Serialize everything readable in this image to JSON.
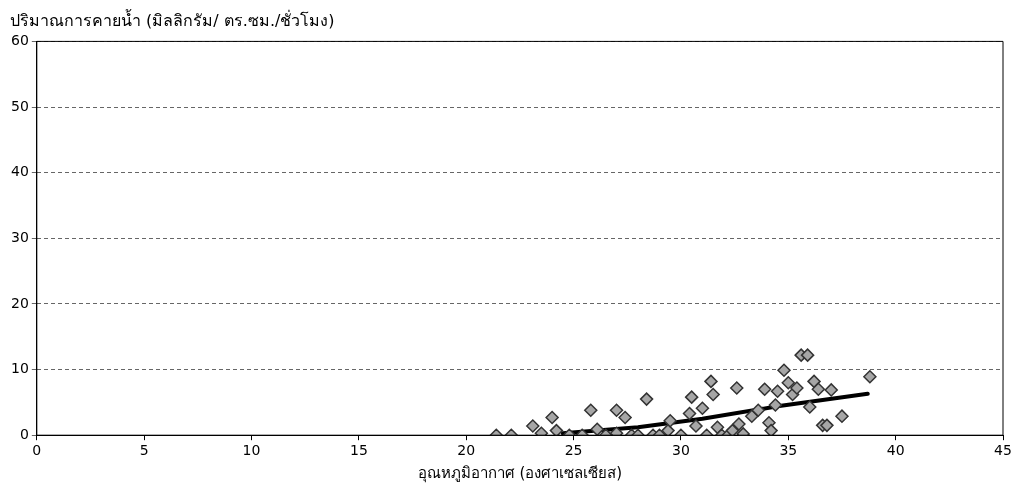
{
  "chart_data": {
    "type": "scatter",
    "ylabel": "ปริมาณการคายน้ำ (มิลลิกรัม/ ตร.ซม./ชั่วโมง)",
    "xlabel": "อุณหภูมิอากาศ (องศาเซลเซียส)",
    "xlim": [
      0,
      45
    ],
    "xticks": [
      0,
      5,
      10,
      15,
      20,
      25,
      30,
      35,
      40,
      45
    ],
    "ylim": [
      0,
      60
    ],
    "yticks": [
      0,
      10,
      20,
      30,
      40,
      50,
      60
    ],
    "grid": "y",
    "legend": false,
    "series": [
      {
        "marker": "diamond",
        "color": "#a6a6a6",
        "x": [
          21.4,
          22.1,
          23.1,
          23.5,
          24.0,
          24.2,
          24.8,
          25.4,
          25.8,
          26.1,
          26.5,
          27.0,
          27.0,
          27.4,
          27.7,
          28.0,
          28.4,
          28.7,
          29.0,
          29.4,
          29.5,
          30.0,
          30.4,
          30.5,
          30.7,
          31.0,
          31.2,
          31.4,
          31.5,
          31.7,
          31.9,
          32.2,
          32.4,
          32.6,
          32.7,
          32.9,
          33.3,
          33.6,
          33.9,
          34.1,
          34.2,
          34.4,
          34.5,
          34.8,
          35.0,
          35.2,
          35.4,
          35.6,
          35.9,
          36.0,
          36.2,
          36.4,
          36.6,
          36.8,
          37.0,
          37.5,
          38.8
        ],
        "values": [
          0,
          0,
          1.4,
          0.3,
          2.7,
          0.7,
          0,
          0,
          3.8,
          0.9,
          0,
          0.3,
          3.8,
          2.7,
          0,
          0,
          5.5,
          0,
          0,
          0.7,
          2.2,
          0,
          3.3,
          5.8,
          1.4,
          4.1,
          0,
          8.2,
          6.2,
          1.2,
          0,
          0,
          0.7,
          7.2,
          1.7,
          0.2,
          2.9,
          3.8,
          7,
          1.9,
          0.7,
          4.6,
          6.7,
          9.9,
          8,
          6.2,
          7.2,
          12.2,
          12.2,
          4.3,
          8.2,
          7,
          1.5,
          1.5,
          6.9,
          2.9,
          8.9
        ]
      },
      {
        "type": "line",
        "marker": "none",
        "color": "#000000",
        "x": [
          24.5,
          28,
          31,
          34.5,
          38.7
        ],
        "values": [
          0.3,
          1.2,
          2.5,
          4.4,
          6.3
        ]
      }
    ]
  }
}
